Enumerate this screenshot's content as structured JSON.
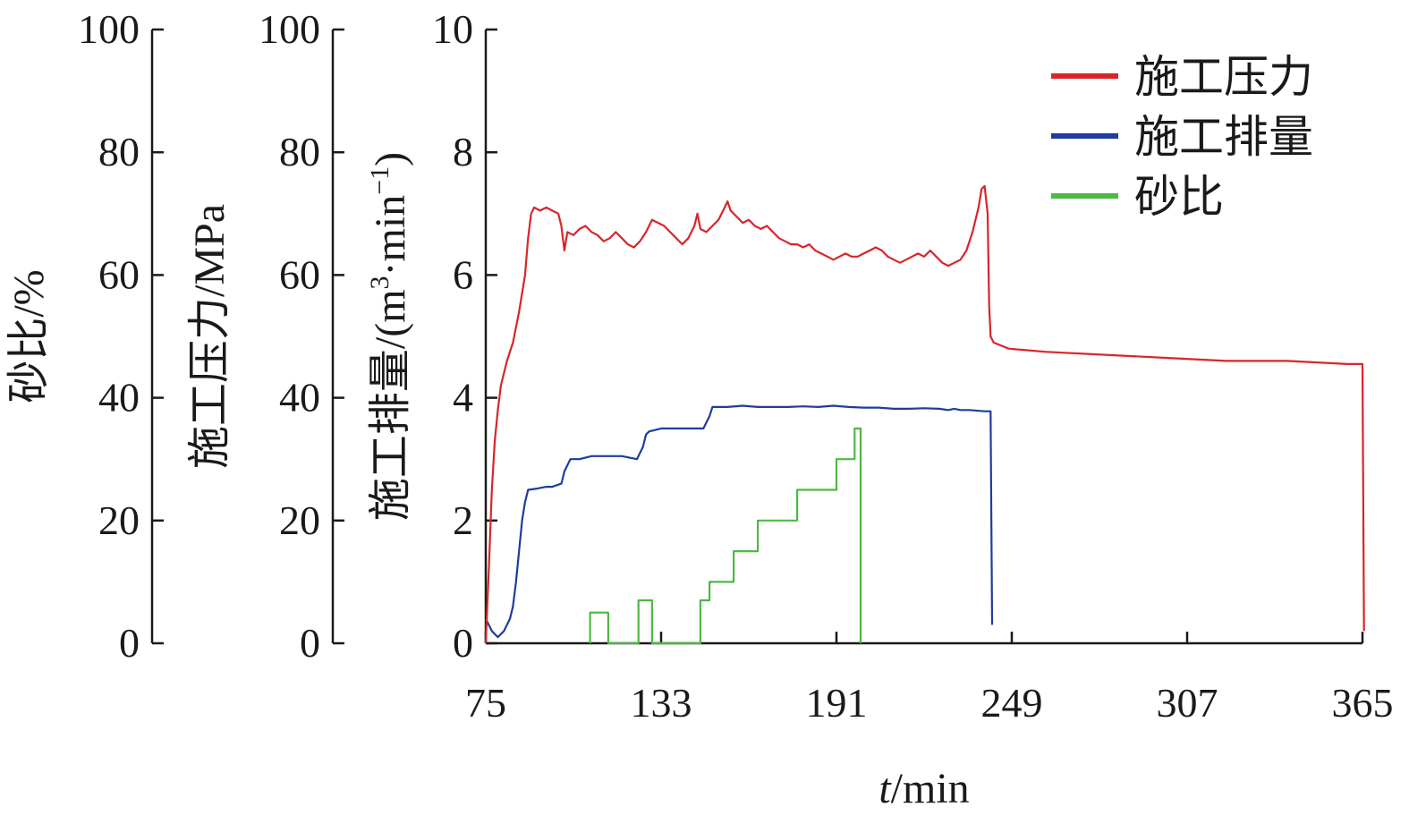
{
  "chart_data": {
    "type": "line",
    "title": "",
    "xlabel": {
      "italic": "t",
      "rest": "/min"
    },
    "x_ticks": [
      "75",
      "133",
      "191",
      "249",
      "307",
      "365"
    ],
    "xlim": [
      75,
      365
    ],
    "y_axes": [
      {
        "id": "sand",
        "label": "砂比/%",
        "ticks": [
          "0",
          "20",
          "40",
          "60",
          "80",
          "100"
        ],
        "ylim": [
          0,
          100
        ]
      },
      {
        "id": "pressure",
        "label": "施工压力/MPa",
        "ticks": [
          "0",
          "20",
          "40",
          "60",
          "80",
          "100"
        ],
        "ylim": [
          0,
          100
        ]
      },
      {
        "id": "rate",
        "label_main": "施工排量/(m",
        "label_sup1": "3",
        "label_mid": "·min",
        "label_sup2": "−1",
        "label_end": ")",
        "ticks": [
          "0",
          "2",
          "4",
          "6",
          "8",
          "10"
        ],
        "ylim": [
          0,
          10
        ]
      }
    ],
    "legend": {
      "position": "top-right"
    },
    "series": [
      {
        "name": "施工压力",
        "axis": "pressure",
        "color": "#d9252a",
        "points": [
          [
            75,
            0
          ],
          [
            76,
            12
          ],
          [
            77,
            25
          ],
          [
            78,
            33
          ],
          [
            79,
            38
          ],
          [
            80,
            42
          ],
          [
            82,
            46
          ],
          [
            84,
            49
          ],
          [
            86,
            54
          ],
          [
            88,
            60
          ],
          [
            89,
            66
          ],
          [
            90,
            70
          ],
          [
            91,
            71
          ],
          [
            93,
            70.5
          ],
          [
            95,
            71
          ],
          [
            97,
            70.5
          ],
          [
            99,
            70
          ],
          [
            100,
            68
          ],
          [
            101,
            64
          ],
          [
            102,
            67
          ],
          [
            104,
            66.5
          ],
          [
            106,
            67.5
          ],
          [
            108,
            68
          ],
          [
            110,
            67
          ],
          [
            112,
            66.5
          ],
          [
            114,
            65.5
          ],
          [
            116,
            66
          ],
          [
            118,
            67
          ],
          [
            120,
            66
          ],
          [
            122,
            65
          ],
          [
            124,
            64.5
          ],
          [
            126,
            65.5
          ],
          [
            128,
            67
          ],
          [
            130,
            69
          ],
          [
            132,
            68.5
          ],
          [
            134,
            68
          ],
          [
            136,
            67
          ],
          [
            138,
            66
          ],
          [
            140,
            65
          ],
          [
            142,
            66
          ],
          [
            144,
            68
          ],
          [
            145,
            70
          ],
          [
            146,
            67.5
          ],
          [
            148,
            67
          ],
          [
            150,
            68
          ],
          [
            152,
            69
          ],
          [
            154,
            71
          ],
          [
            155,
            72
          ],
          [
            156,
            70.5
          ],
          [
            158,
            69.5
          ],
          [
            160,
            68.5
          ],
          [
            162,
            69
          ],
          [
            164,
            68
          ],
          [
            166,
            67.5
          ],
          [
            168,
            68
          ],
          [
            170,
            67
          ],
          [
            172,
            66
          ],
          [
            174,
            65.5
          ],
          [
            176,
            65
          ],
          [
            178,
            65
          ],
          [
            180,
            64.5
          ],
          [
            182,
            65
          ],
          [
            184,
            64
          ],
          [
            186,
            63.5
          ],
          [
            188,
            63
          ],
          [
            190,
            62.5
          ],
          [
            192,
            63
          ],
          [
            194,
            63.5
          ],
          [
            196,
            63
          ],
          [
            198,
            63
          ],
          [
            200,
            63.5
          ],
          [
            202,
            64
          ],
          [
            204,
            64.5
          ],
          [
            206,
            64
          ],
          [
            208,
            63
          ],
          [
            210,
            62.5
          ],
          [
            212,
            62
          ],
          [
            214,
            62.5
          ],
          [
            216,
            63
          ],
          [
            218,
            63.5
          ],
          [
            220,
            63
          ],
          [
            222,
            64
          ],
          [
            224,
            63
          ],
          [
            226,
            62
          ],
          [
            228,
            61.5
          ],
          [
            230,
            62
          ],
          [
            232,
            62.5
          ],
          [
            234,
            64
          ],
          [
            236,
            67
          ],
          [
            238,
            71
          ],
          [
            239,
            74
          ],
          [
            240,
            74.5
          ],
          [
            241,
            70
          ],
          [
            241.5,
            55
          ],
          [
            242,
            50
          ],
          [
            243,
            49
          ],
          [
            248,
            48
          ],
          [
            260,
            47.5
          ],
          [
            280,
            47
          ],
          [
            300,
            46.5
          ],
          [
            320,
            46
          ],
          [
            340,
            46
          ],
          [
            360,
            45.5
          ],
          [
            365,
            45.5
          ],
          [
            365.5,
            2
          ]
        ]
      },
      {
        "name": "施工排量",
        "axis": "rate",
        "color": "#1f3c9e",
        "points": [
          [
            75,
            0.4
          ],
          [
            77,
            0.2
          ],
          [
            79,
            0.1
          ],
          [
            81,
            0.2
          ],
          [
            83,
            0.4
          ],
          [
            84,
            0.6
          ],
          [
            85,
            1.0
          ],
          [
            86,
            1.5
          ],
          [
            87,
            2.0
          ],
          [
            88,
            2.3
          ],
          [
            89,
            2.5
          ],
          [
            92,
            2.52
          ],
          [
            95,
            2.55
          ],
          [
            97,
            2.55
          ],
          [
            100,
            2.6
          ],
          [
            101,
            2.8
          ],
          [
            102,
            2.9
          ],
          [
            103,
            3.0
          ],
          [
            106,
            3.0
          ],
          [
            110,
            3.05
          ],
          [
            115,
            3.05
          ],
          [
            120,
            3.05
          ],
          [
            125,
            3.0
          ],
          [
            127,
            3.2
          ],
          [
            128,
            3.4
          ],
          [
            129,
            3.45
          ],
          [
            133,
            3.5
          ],
          [
            140,
            3.5
          ],
          [
            147,
            3.5
          ],
          [
            148,
            3.6
          ],
          [
            149,
            3.7
          ],
          [
            150,
            3.85
          ],
          [
            155,
            3.85
          ],
          [
            160,
            3.87
          ],
          [
            165,
            3.85
          ],
          [
            170,
            3.85
          ],
          [
            175,
            3.85
          ],
          [
            180,
            3.86
          ],
          [
            185,
            3.85
          ],
          [
            190,
            3.87
          ],
          [
            195,
            3.85
          ],
          [
            200,
            3.84
          ],
          [
            205,
            3.84
          ],
          [
            210,
            3.82
          ],
          [
            215,
            3.82
          ],
          [
            220,
            3.83
          ],
          [
            225,
            3.82
          ],
          [
            228,
            3.8
          ],
          [
            230,
            3.82
          ],
          [
            232,
            3.8
          ],
          [
            235,
            3.8
          ],
          [
            240,
            3.78
          ],
          [
            242,
            3.78
          ],
          [
            242.5,
            0.3
          ]
        ]
      },
      {
        "name": "砂比",
        "axis": "sand",
        "color": "#4cb944",
        "points": [
          [
            109.5,
            0
          ],
          [
            109.5,
            5
          ],
          [
            115.5,
            5
          ],
          [
            115.5,
            0
          ],
          [
            125.5,
            0
          ],
          [
            125.5,
            7
          ],
          [
            130,
            7
          ],
          [
            130,
            0
          ],
          [
            146,
            0
          ],
          [
            146,
            7
          ],
          [
            149,
            7
          ],
          [
            149,
            10
          ],
          [
            157,
            10
          ],
          [
            157,
            15
          ],
          [
            165,
            15
          ],
          [
            165,
            20
          ],
          [
            178,
            20
          ],
          [
            178,
            25
          ],
          [
            191,
            25
          ],
          [
            191,
            30
          ],
          [
            197,
            30
          ],
          [
            197,
            35
          ],
          [
            199,
            35
          ],
          [
            199,
            0
          ]
        ]
      }
    ]
  }
}
